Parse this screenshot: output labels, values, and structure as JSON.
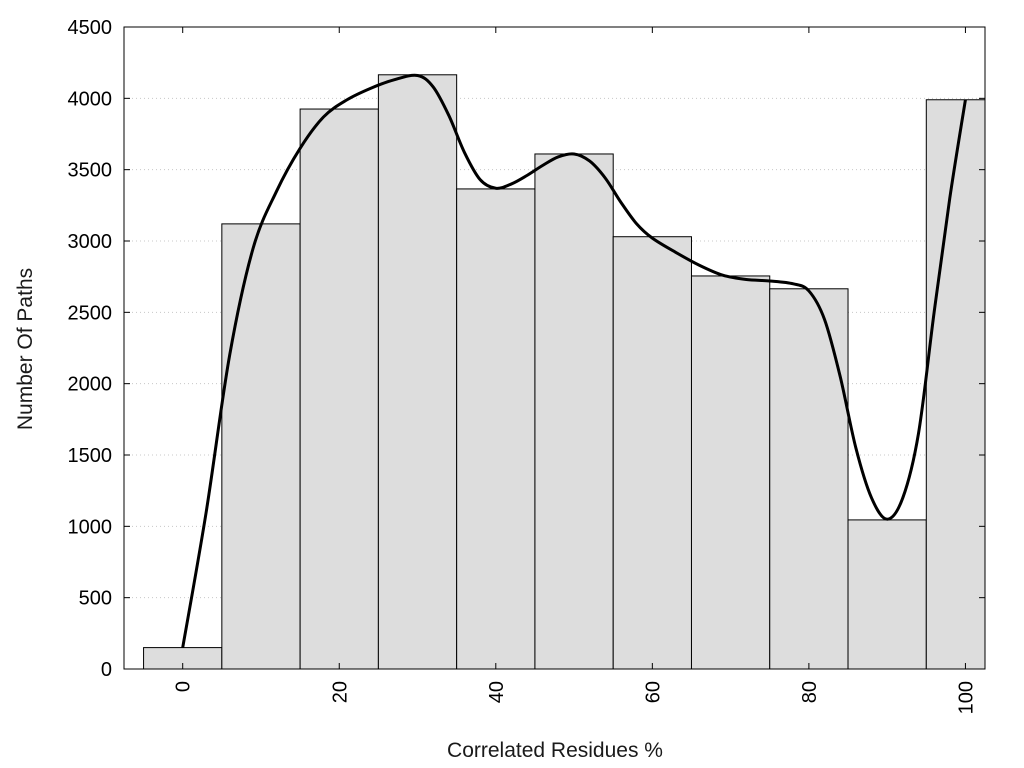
{
  "chart_data": {
    "type": "bar",
    "xlabel": "Correlated Residues %",
    "ylabel": "Number Of Paths",
    "xlim": [
      -7.5,
      102.5
    ],
    "ylim": [
      0,
      4500
    ],
    "grid": "horizontal dotted",
    "bar_color": "#dddddd",
    "x_ticks": [
      0,
      20,
      40,
      60,
      80,
      100
    ],
    "y_ticks": [
      0,
      500,
      1000,
      1500,
      2000,
      2500,
      3000,
      3500,
      4000,
      4500
    ],
    "bins": [
      {
        "left": -5,
        "right": 5,
        "value": 150
      },
      {
        "left": 5,
        "right": 15,
        "value": 3120
      },
      {
        "left": 15,
        "right": 25,
        "value": 3925
      },
      {
        "left": 25,
        "right": 35,
        "value": 4165
      },
      {
        "left": 35,
        "right": 45,
        "value": 3365
      },
      {
        "left": 45,
        "right": 55,
        "value": 3610
      },
      {
        "left": 55,
        "right": 65,
        "value": 3030
      },
      {
        "left": 65,
        "right": 75,
        "value": 2755
      },
      {
        "left": 75,
        "right": 85,
        "value": 2665
      },
      {
        "left": 85,
        "right": 95,
        "value": 1045
      },
      {
        "left": 95,
        "right": 105,
        "value": 3990
      }
    ],
    "trend_line": {
      "x": [
        0,
        3,
        6,
        9,
        12,
        15,
        18,
        21,
        24,
        27,
        30,
        32,
        34,
        36,
        38,
        40,
        42,
        44,
        46,
        48,
        50,
        52,
        54,
        56,
        58,
        60,
        63,
        66,
        69,
        72,
        75,
        78,
        80,
        82,
        84,
        86,
        88,
        90,
        92,
        94,
        96,
        98,
        100
      ],
      "y": [
        150,
        1100,
        2200,
        2950,
        3350,
        3650,
        3870,
        3990,
        4070,
        4130,
        4160,
        4080,
        3880,
        3620,
        3430,
        3370,
        3400,
        3460,
        3530,
        3590,
        3610,
        3560,
        3440,
        3270,
        3120,
        3020,
        2920,
        2830,
        2760,
        2730,
        2720,
        2700,
        2650,
        2450,
        2050,
        1550,
        1200,
        1050,
        1200,
        1650,
        2500,
        3300,
        3990
      ]
    }
  }
}
